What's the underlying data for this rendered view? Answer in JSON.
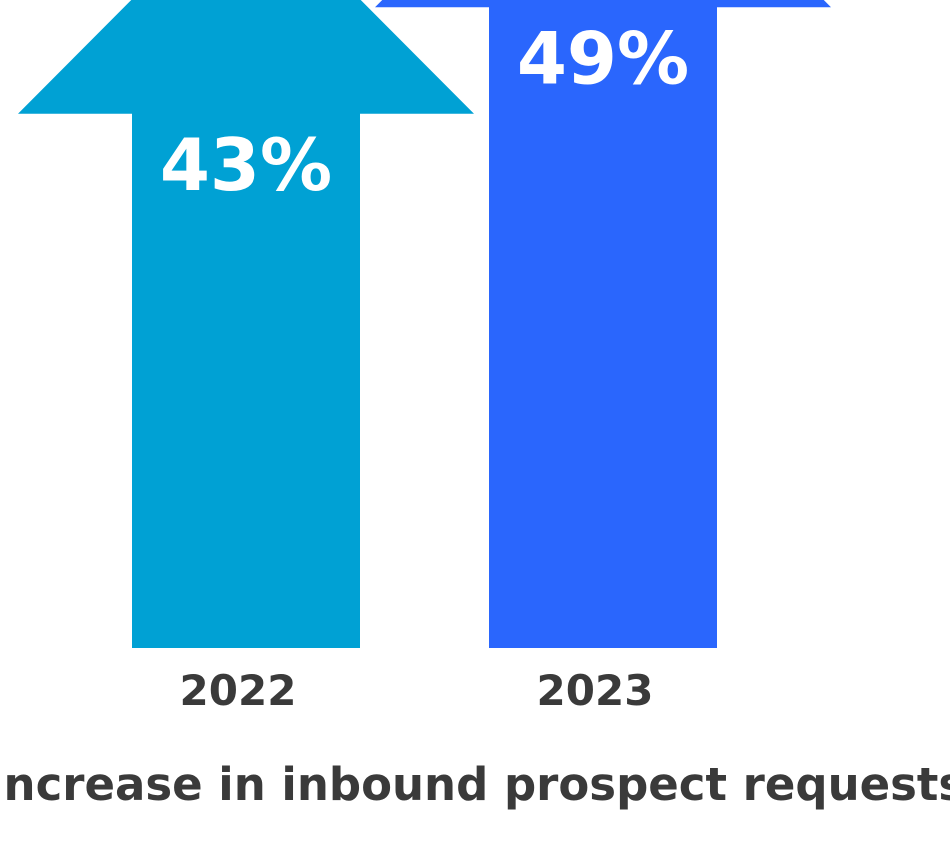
{
  "chart_data": {
    "type": "bar",
    "title": "Increase in inbound prospect requests",
    "categories": [
      "2022",
      "2023"
    ],
    "values": [
      43,
      49
    ],
    "value_labels": [
      "43%",
      "49%"
    ],
    "unit": "%",
    "colors": [
      "#00a1d4",
      "#2a66fd"
    ],
    "bar_shape": "up-arrow",
    "grid": false
  }
}
